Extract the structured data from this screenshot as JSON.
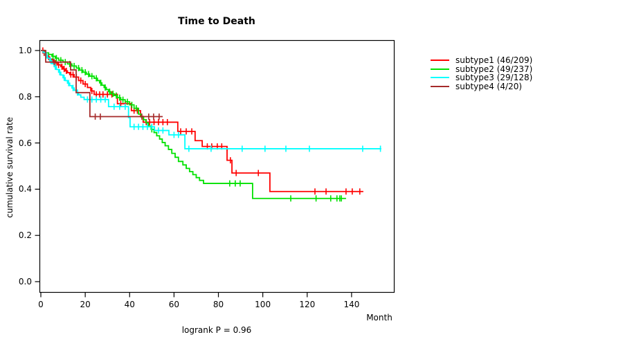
{
  "title": "Time to Death",
  "footer": "logrank P = 0.96",
  "chart_data": {
    "type": "line",
    "subtype": "kaplan-meier-step-curves",
    "title": "Time to Death",
    "xlabel": "Month",
    "ylabel": "cumulative survival rate",
    "annotation": "logrank P = 0.96",
    "xlim": [
      0,
      159
    ],
    "ylim": [
      0,
      1.0
    ],
    "x_ticks": [
      0,
      20,
      40,
      60,
      80,
      100,
      120,
      140
    ],
    "y_ticks": [
      1.0,
      0.8,
      0.6,
      0.4,
      0.2,
      0.0
    ],
    "grid": false,
    "legend_position": "right-outside",
    "series": [
      {
        "name": "subtype1",
        "label": "subtype1 (46/209)",
        "color": "#ff0000",
        "events": [
          [
            0,
            1.0
          ],
          [
            1,
            0.99
          ],
          [
            2,
            0.98
          ],
          [
            3,
            0.972
          ],
          [
            4,
            0.963
          ],
          [
            5,
            0.955
          ],
          [
            6.5,
            0.947
          ],
          [
            7.5,
            0.938
          ],
          [
            9,
            0.93
          ],
          [
            10,
            0.92
          ],
          [
            11,
            0.912
          ],
          [
            12,
            0.904
          ],
          [
            13,
            0.896
          ],
          [
            15,
            0.885
          ],
          [
            17,
            0.87
          ],
          [
            19,
            0.855
          ],
          [
            21,
            0.84
          ],
          [
            22.5,
            0.825
          ],
          [
            24,
            0.81
          ],
          [
            34.5,
            0.77
          ],
          [
            40.8,
            0.74
          ],
          [
            44.9,
            0.715
          ],
          [
            46.1,
            0.69
          ],
          [
            61.7,
            0.65
          ],
          [
            69.5,
            0.61
          ],
          [
            72.7,
            0.585
          ],
          [
            83.9,
            0.525
          ],
          [
            86.1,
            0.47
          ],
          [
            103.2,
            0.39
          ]
        ],
        "end_month": 145.3,
        "censor_months": [
          0.9,
          1.5,
          2.5,
          3.5,
          5.5,
          6.8,
          8,
          9.5,
          10.5,
          11.5,
          13.5,
          14.5,
          16,
          18,
          20,
          23,
          25,
          26.5,
          28,
          30,
          32,
          36,
          38,
          42,
          43.5,
          47.5,
          49,
          51,
          53,
          55,
          57,
          63,
          65.5,
          68,
          75,
          77,
          79.5,
          81.5,
          85.4,
          88,
          98,
          123.5,
          128.5,
          137.5,
          140.3,
          143.7
        ]
      },
      {
        "name": "subtype2",
        "label": "subtype2 (49/237)",
        "color": "#00e100",
        "events": [
          [
            0,
            1.0
          ],
          [
            2,
            0.99
          ],
          [
            3.5,
            0.983
          ],
          [
            5,
            0.975
          ],
          [
            6.5,
            0.967
          ],
          [
            8,
            0.958
          ],
          [
            10,
            0.95
          ],
          [
            12,
            0.942
          ],
          [
            14,
            0.933
          ],
          [
            16,
            0.924
          ],
          [
            17.5,
            0.915
          ],
          [
            19,
            0.906
          ],
          [
            20.5,
            0.898
          ],
          [
            22,
            0.889
          ],
          [
            24,
            0.88
          ],
          [
            25.5,
            0.87
          ],
          [
            26.5,
            0.86
          ],
          [
            27.5,
            0.85
          ],
          [
            28.5,
            0.84
          ],
          [
            29.5,
            0.831
          ],
          [
            30.5,
            0.822
          ],
          [
            31.5,
            0.813
          ],
          [
            33,
            0.805
          ],
          [
            34.5,
            0.796
          ],
          [
            36,
            0.787
          ],
          [
            38,
            0.778
          ],
          [
            40,
            0.765
          ],
          [
            42,
            0.75
          ],
          [
            44,
            0.725
          ],
          [
            45.2,
            0.712
          ],
          [
            46.3,
            0.7
          ],
          [
            47.4,
            0.687
          ],
          [
            48.5,
            0.673
          ],
          [
            49.7,
            0.659
          ],
          [
            51,
            0.645
          ],
          [
            52.2,
            0.631
          ],
          [
            53.5,
            0.617
          ],
          [
            54.7,
            0.602
          ],
          [
            56,
            0.588
          ],
          [
            57.5,
            0.572
          ],
          [
            59,
            0.555
          ],
          [
            60.5,
            0.538
          ],
          [
            62,
            0.52
          ],
          [
            64,
            0.505
          ],
          [
            65.5,
            0.49
          ],
          [
            67,
            0.476
          ],
          [
            68.5,
            0.463
          ],
          [
            70,
            0.45
          ],
          [
            71.5,
            0.438
          ],
          [
            73.3,
            0.425
          ],
          [
            95.4,
            0.36
          ]
        ],
        "end_month": 137.5,
        "censor_months": [
          5.5,
          7,
          9,
          11,
          13,
          15,
          17,
          18.5,
          20,
          21.5,
          23,
          25,
          27,
          29,
          31,
          32.5,
          34,
          35.5,
          37,
          39,
          41,
          43,
          50,
          85.1,
          87.6,
          89.8,
          112.6,
          124,
          130.6,
          133.4,
          134.7,
          135.4
        ]
      },
      {
        "name": "subtype3",
        "label": "subtype3 (29/128)",
        "color": "#00ffff",
        "events": [
          [
            0,
            1.0
          ],
          [
            1,
            0.992
          ],
          [
            2,
            0.98
          ],
          [
            3,
            0.967
          ],
          [
            4,
            0.955
          ],
          [
            5,
            0.943
          ],
          [
            6,
            0.93
          ],
          [
            7,
            0.918
          ],
          [
            8,
            0.906
          ],
          [
            9,
            0.894
          ],
          [
            10,
            0.882
          ],
          [
            11,
            0.87
          ],
          [
            12,
            0.859
          ],
          [
            13,
            0.848
          ],
          [
            14,
            0.838
          ],
          [
            15,
            0.828
          ],
          [
            16,
            0.818
          ],
          [
            17,
            0.808
          ],
          [
            18,
            0.798
          ],
          [
            19.5,
            0.788
          ],
          [
            30.5,
            0.757
          ],
          [
            39.5,
            0.71
          ],
          [
            40.2,
            0.67
          ],
          [
            51.2,
            0.654
          ],
          [
            57.7,
            0.635
          ],
          [
            64.9,
            0.575
          ]
        ],
        "end_month": 153.4,
        "censor_months": [
          2.5,
          4.5,
          6.5,
          8.5,
          10.5,
          12.5,
          14.5,
          16.5,
          21,
          23,
          25,
          27,
          29,
          33,
          35.5,
          38,
          42,
          44,
          46,
          48,
          50,
          53,
          55,
          60,
          62,
          66.7,
          76.7,
          90.7,
          101,
          110.4,
          121,
          145,
          153
        ]
      },
      {
        "name": "subtype4",
        "label": "subtype4 (4/20)",
        "color": "#a52a2a",
        "events": [
          [
            0,
            1.0
          ],
          [
            2.2,
            0.95
          ],
          [
            13.4,
            0.916
          ],
          [
            15.9,
            0.818
          ],
          [
            22.1,
            0.714
          ]
        ],
        "end_month": 54.9,
        "censor_months": [
          6,
          24.5,
          26.8,
          45.5,
          48.6,
          50.8,
          53.3
        ]
      }
    ]
  }
}
